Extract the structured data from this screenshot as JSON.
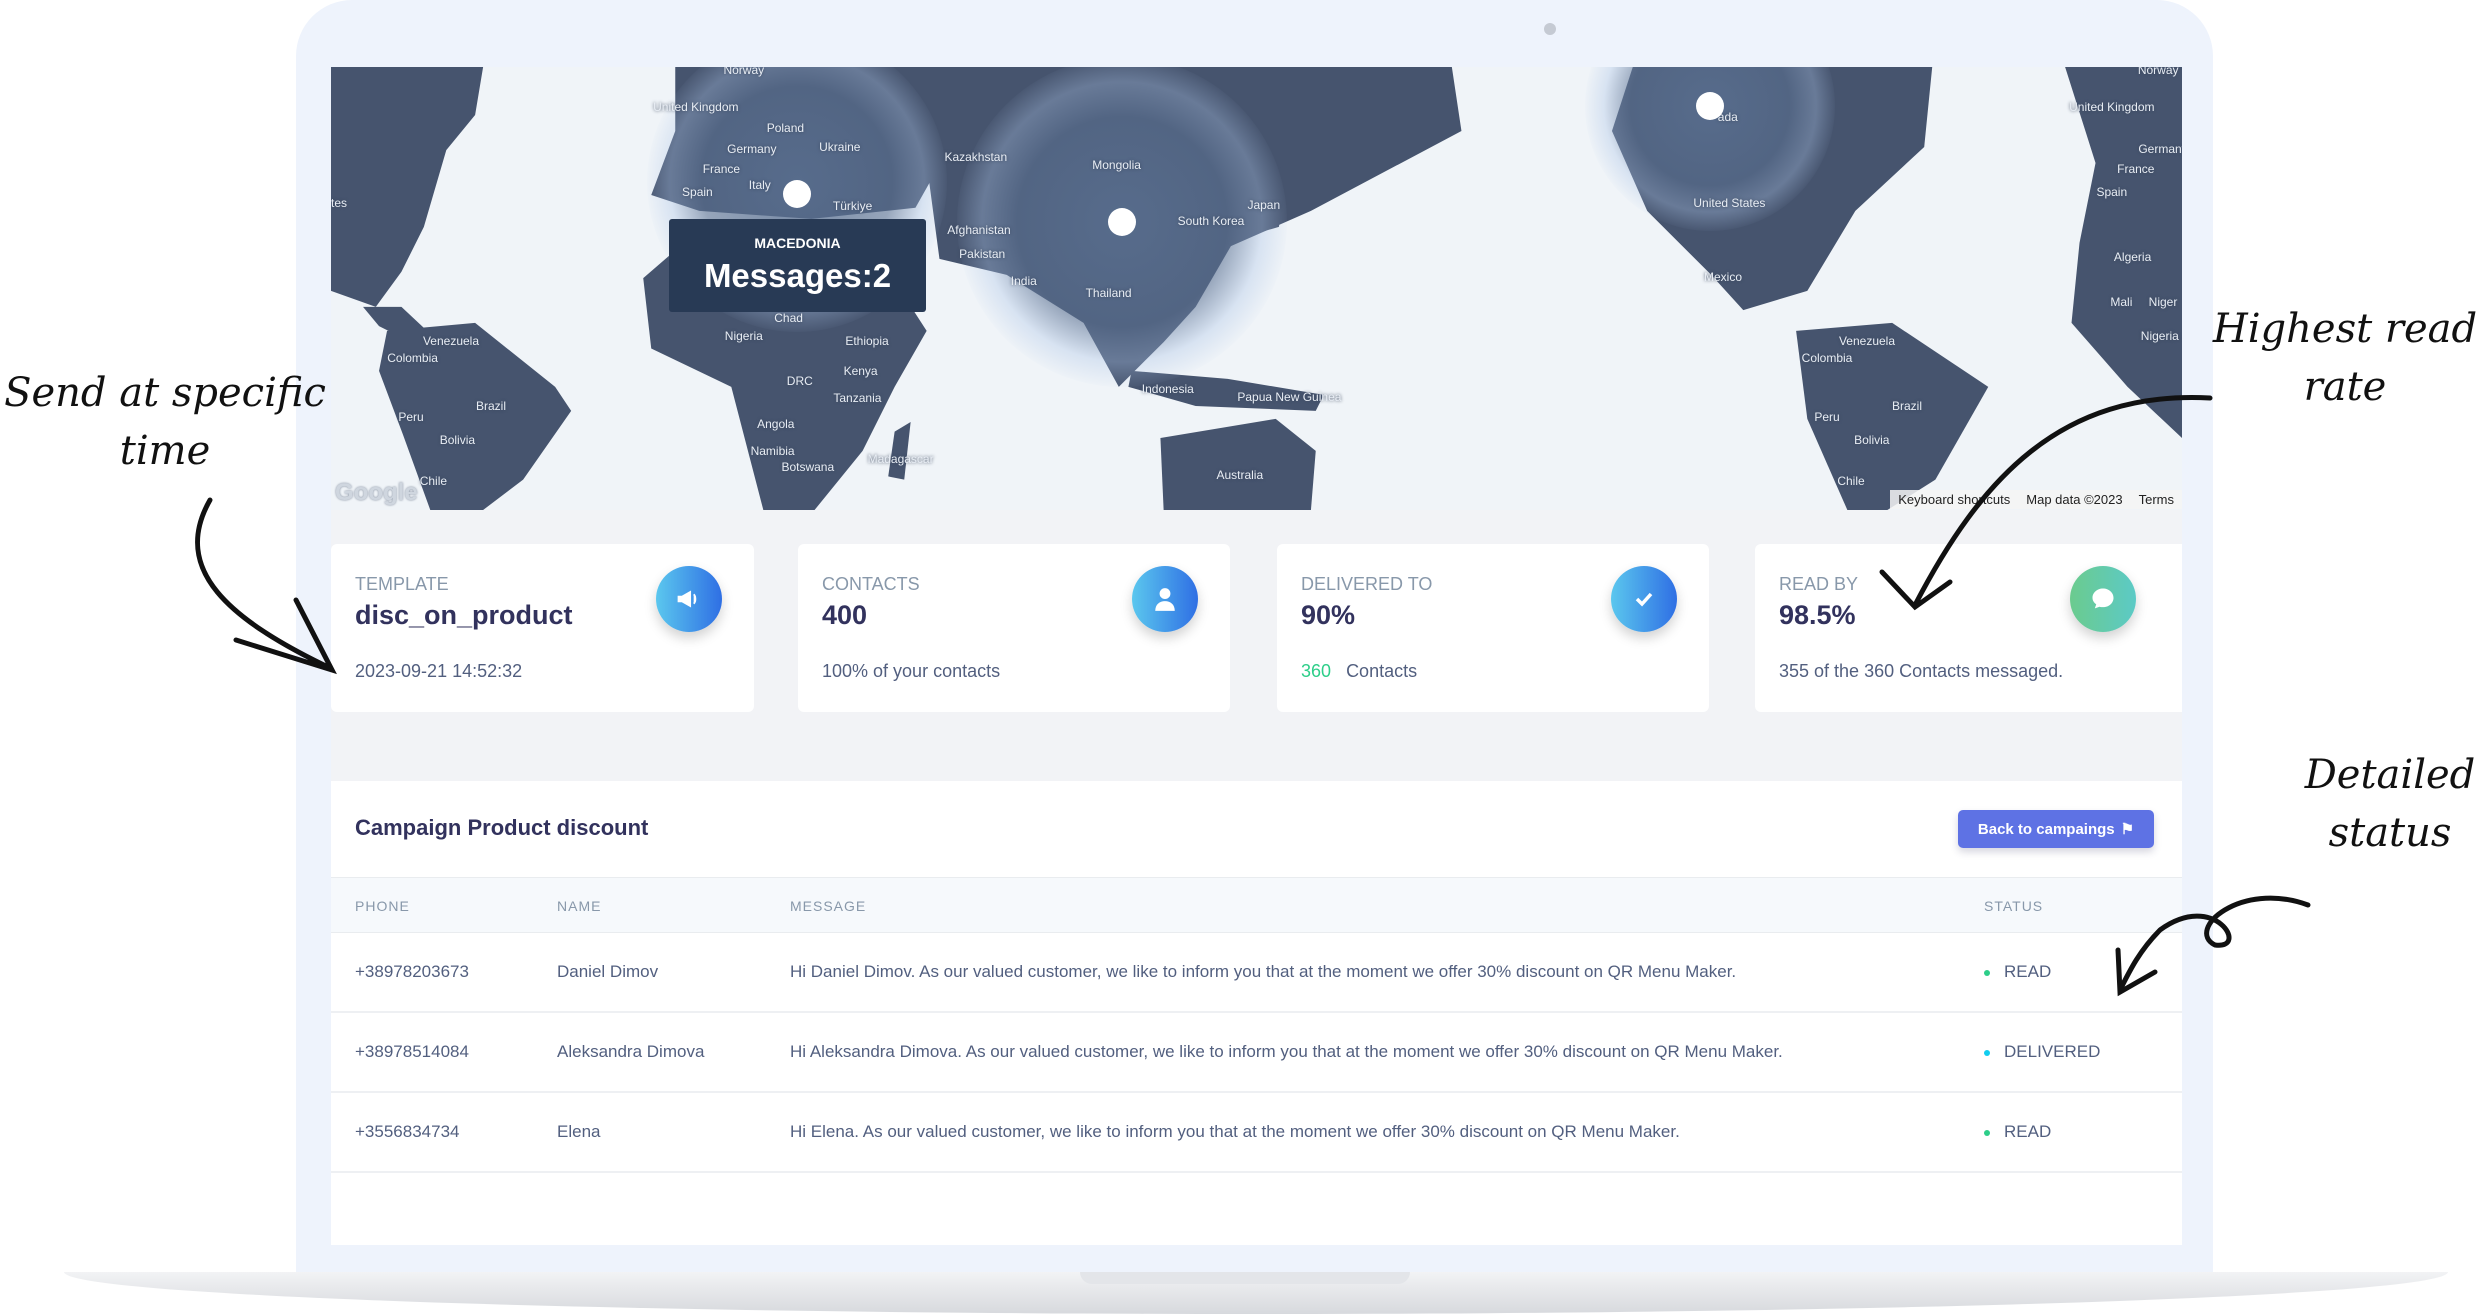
{
  "map": {
    "labels": [
      "Norway",
      "United Kingdom",
      "Poland",
      "Germany",
      "Ukraine",
      "France",
      "Spain",
      "Italy",
      "Türkiye",
      "Kazakhstan",
      "Mongolia",
      "Afghanistan",
      "Pakistan",
      "India",
      "South Korea",
      "Japan",
      "Thailand",
      "Chad",
      "Nigeria",
      "Ethiopia",
      "Kenya",
      "DRC",
      "Tanzania",
      "Angola",
      "Namibia",
      "Botswana",
      "Madagascar",
      "Indonesia",
      "Papua New Guinea",
      "Australia",
      "Venezuela",
      "Colombia",
      "Brazil",
      "Peru",
      "Bolivia",
      "Chile",
      "tes",
      "United States",
      "Mexico",
      "Venezuela",
      "Colombia",
      "Brazil",
      "Peru",
      "Bolivia",
      "Chile",
      "Norway",
      "United Kingdom",
      "Germany",
      "France",
      "Spain",
      "Algeria",
      "Mali",
      "Niger",
      "Nigeria",
      "ada"
    ],
    "tooltip": {
      "country": "MACEDONIA",
      "messages": "Messages:2"
    },
    "google_logo": "Google",
    "attribution": [
      "Keyboard shortcuts",
      "Map data ©2023",
      "Terms"
    ],
    "land_color": "#46546e",
    "water_color": "#f0f4f8"
  },
  "cards": [
    {
      "label": "TEMPLATE",
      "value": "disc_on_product",
      "sub": "2023-09-21 14:52:32",
      "icon": "megaphone-icon"
    },
    {
      "label": "CONTACTS",
      "value": "400",
      "sub": "100% of your contacts",
      "icon": "user-icon"
    },
    {
      "label": "DELIVERED TO",
      "value": "90%",
      "sub_highlight": "360",
      "sub": "Contacts",
      "icon": "check-icon"
    },
    {
      "label": "READ BY",
      "value": "98.5%",
      "sub": "355 of the 360 Contacts messaged.",
      "icon": "chat-bubble-icon"
    }
  ],
  "campaign": {
    "title": "Campaign Product discount",
    "back_button": "Back to campaings",
    "columns": [
      "PHONE",
      "NAME",
      "MESSAGE",
      "STATUS"
    ],
    "rows": [
      {
        "phone": "+38978203673",
        "name": "Daniel Dimov",
        "message": "Hi Daniel Dimov. As our valued customer, we like to inform you that at the moment we offer 30% discount on QR Menu Maker.",
        "status": "READ",
        "status_color": "#2dce89"
      },
      {
        "phone": "+38978514084",
        "name": "Aleksandra Dimova",
        "message": "Hi Aleksandra Dimova. As our valued customer, we like to inform you that at the moment we offer 30% discount on QR Menu Maker.",
        "status": "DELIVERED",
        "status_color": "#11cdef"
      },
      {
        "phone": "+3556834734",
        "name": "Elena",
        "message": "Hi Elena. As our valued customer, we like to inform you that at the moment we offer 30% discount on QR Menu Maker.",
        "status": "READ",
        "status_color": "#2dce89"
      }
    ]
  },
  "annotations": {
    "send_time": "Send at specific time",
    "highest_read": "Highest read rate",
    "detailed_status": "Detailed status"
  }
}
